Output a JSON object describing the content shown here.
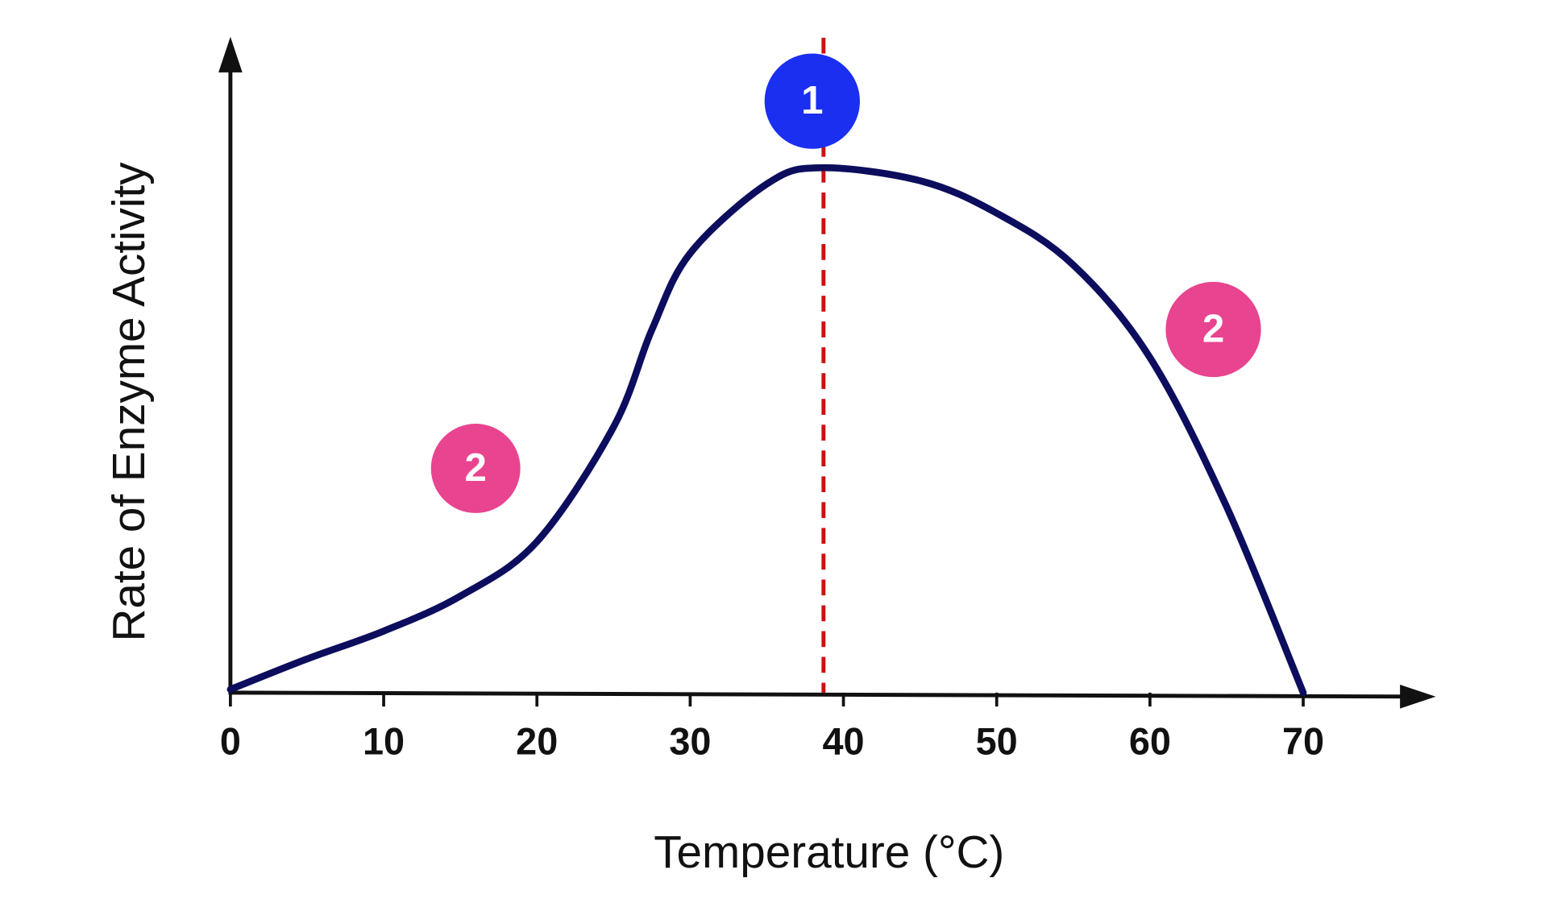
{
  "chart_data": {
    "type": "line",
    "x_label": "Temperature (°C)",
    "y_label": "Rate of Enzyme Activity",
    "x": [
      0,
      5,
      10,
      15,
      20,
      25,
      27.5,
      30,
      35,
      38.5,
      45,
      50,
      55,
      60,
      65,
      70
    ],
    "series": [
      {
        "color": "#0d0d5e",
        "values": [
          0.5,
          5.2,
          9.5,
          14.9,
          23.3,
          41,
          56,
          67.8,
          78.5,
          81,
          79,
          74,
          66,
          51.7,
          28.7,
          0
        ]
      }
    ],
    "xlim": [
      0,
      78
    ],
    "ylim": [
      0,
      100
    ],
    "xticks": [
      0,
      10,
      20,
      30,
      40,
      50,
      60,
      70
    ],
    "optimum_line": {
      "x": 38.7,
      "color": "#cc1111"
    },
    "annotations": [
      {
        "label": "1",
        "color": "#1a2ff0"
      },
      {
        "label": "2",
        "color": "#e8448f"
      },
      {
        "label": "2",
        "color": "#e8448f"
      }
    ]
  }
}
